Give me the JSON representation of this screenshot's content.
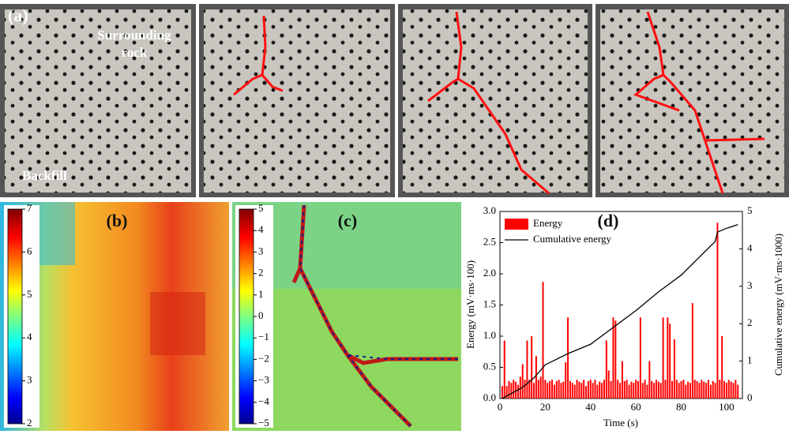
{
  "panel_a": {
    "label": "(a)",
    "rock_label_1": "Surrounding",
    "rock_label_2": "rock",
    "backfill_label": "Backfill"
  },
  "panel_b": {
    "label": "(b)",
    "cticks": [
      2,
      3,
      4,
      5,
      6,
      7
    ],
    "clim": [
      2,
      7
    ]
  },
  "panel_c": {
    "label": "(c)",
    "cticks": [
      {
        "value": -5,
        "label": "−5"
      },
      {
        "value": -4,
        "label": "−4"
      },
      {
        "value": -3,
        "label": "−3"
      },
      {
        "value": -2,
        "label": "−2"
      },
      {
        "value": -1,
        "label": "−1"
      },
      0,
      1,
      2,
      3,
      4,
      5
    ],
    "clim": [
      -5,
      5
    ]
  },
  "chart_data": {
    "type": "bar",
    "label": "(d)",
    "x_label": "Time (s)",
    "y_label": "Energy (mV·ms·100)",
    "y2_label": "Cumulative energy (mV·ms·1000)",
    "xlim": [
      0,
      107
    ],
    "xticks": [
      0,
      20,
      40,
      60,
      80,
      100
    ],
    "ylim": [
      0,
      3
    ],
    "yticks": [
      {
        "value": 0,
        "label": "0.0"
      },
      0.5,
      {
        "value": 1,
        "label": "1.0"
      },
      1.5,
      {
        "value": 2,
        "label": "2.0"
      },
      2.5,
      {
        "value": 3,
        "label": "3.0"
      }
    ],
    "y2lim": [
      0,
      5
    ],
    "y2ticks": [
      0,
      1,
      2,
      3,
      4,
      5
    ],
    "legend": "upper left",
    "series": [
      {
        "name": "Energy",
        "color": "#ff0000",
        "kind": "bar",
        "x": [
          1,
          2,
          3,
          4,
          5,
          6,
          7,
          8,
          9,
          10,
          11,
          12,
          13,
          14,
          15,
          16,
          17,
          18,
          19,
          20,
          21,
          22,
          23,
          24,
          25,
          26,
          27,
          28,
          29,
          30,
          31,
          32,
          33,
          34,
          35,
          36,
          37,
          38,
          39,
          40,
          41,
          42,
          43,
          44,
          45,
          46,
          47,
          48,
          49,
          50,
          51,
          52,
          53,
          54,
          55,
          56,
          57,
          58,
          59,
          60,
          61,
          62,
          63,
          64,
          65,
          66,
          67,
          68,
          69,
          70,
          71,
          72,
          73,
          74,
          75,
          76,
          77,
          78,
          79,
          80,
          81,
          82,
          83,
          84,
          85,
          86,
          87,
          88,
          89,
          90,
          91,
          92,
          93,
          94,
          95,
          96,
          97,
          98,
          99,
          100,
          101,
          102,
          103,
          104,
          105
        ],
        "values": [
          0.2,
          0.93,
          0.2,
          0.28,
          0.25,
          0.3,
          0.27,
          0.22,
          0.35,
          0.55,
          0.3,
          0.93,
          0.3,
          1.0,
          0.25,
          0.68,
          0.3,
          0.35,
          1.87,
          0.3,
          0.25,
          0.28,
          0.3,
          0.22,
          0.28,
          0.3,
          0.25,
          0.27,
          0.58,
          1.3,
          0.28,
          0.25,
          0.22,
          0.3,
          0.27,
          0.25,
          0.3,
          0.2,
          0.28,
          0.3,
          0.25,
          0.3,
          0.22,
          0.27,
          0.25,
          0.3,
          0.93,
          0.45,
          0.28,
          1.3,
          1.25,
          0.3,
          0.25,
          0.6,
          0.28,
          0.3,
          0.22,
          0.27,
          0.25,
          0.3,
          0.28,
          1.3,
          0.25,
          0.3,
          0.22,
          0.6,
          0.28,
          0.25,
          0.3,
          0.27,
          0.25,
          1.3,
          0.3,
          1.3,
          1.2,
          0.28,
          0.95,
          0.3,
          0.25,
          0.28,
          0.3,
          0.22,
          0.27,
          0.25,
          1.53,
          0.3,
          0.28,
          0.25,
          0.3,
          0.27,
          0.25,
          0.3,
          0.22,
          0.28,
          0.25,
          2.82,
          0.3,
          1.0,
          0.28,
          0.25,
          0.3,
          0.27,
          0.25,
          0.3,
          0.22
        ]
      },
      {
        "name": "Cumulative energy",
        "color": "#000000",
        "kind": "line",
        "axis": "y2",
        "x": [
          1,
          10,
          15,
          20,
          30,
          40,
          50,
          60,
          70,
          80,
          90,
          95,
          96,
          100,
          105
        ],
        "values": [
          0,
          0.3,
          0.55,
          0.9,
          1.2,
          1.45,
          1.9,
          2.35,
          2.85,
          3.3,
          3.9,
          4.2,
          4.45,
          4.55,
          4.65
        ]
      }
    ]
  }
}
